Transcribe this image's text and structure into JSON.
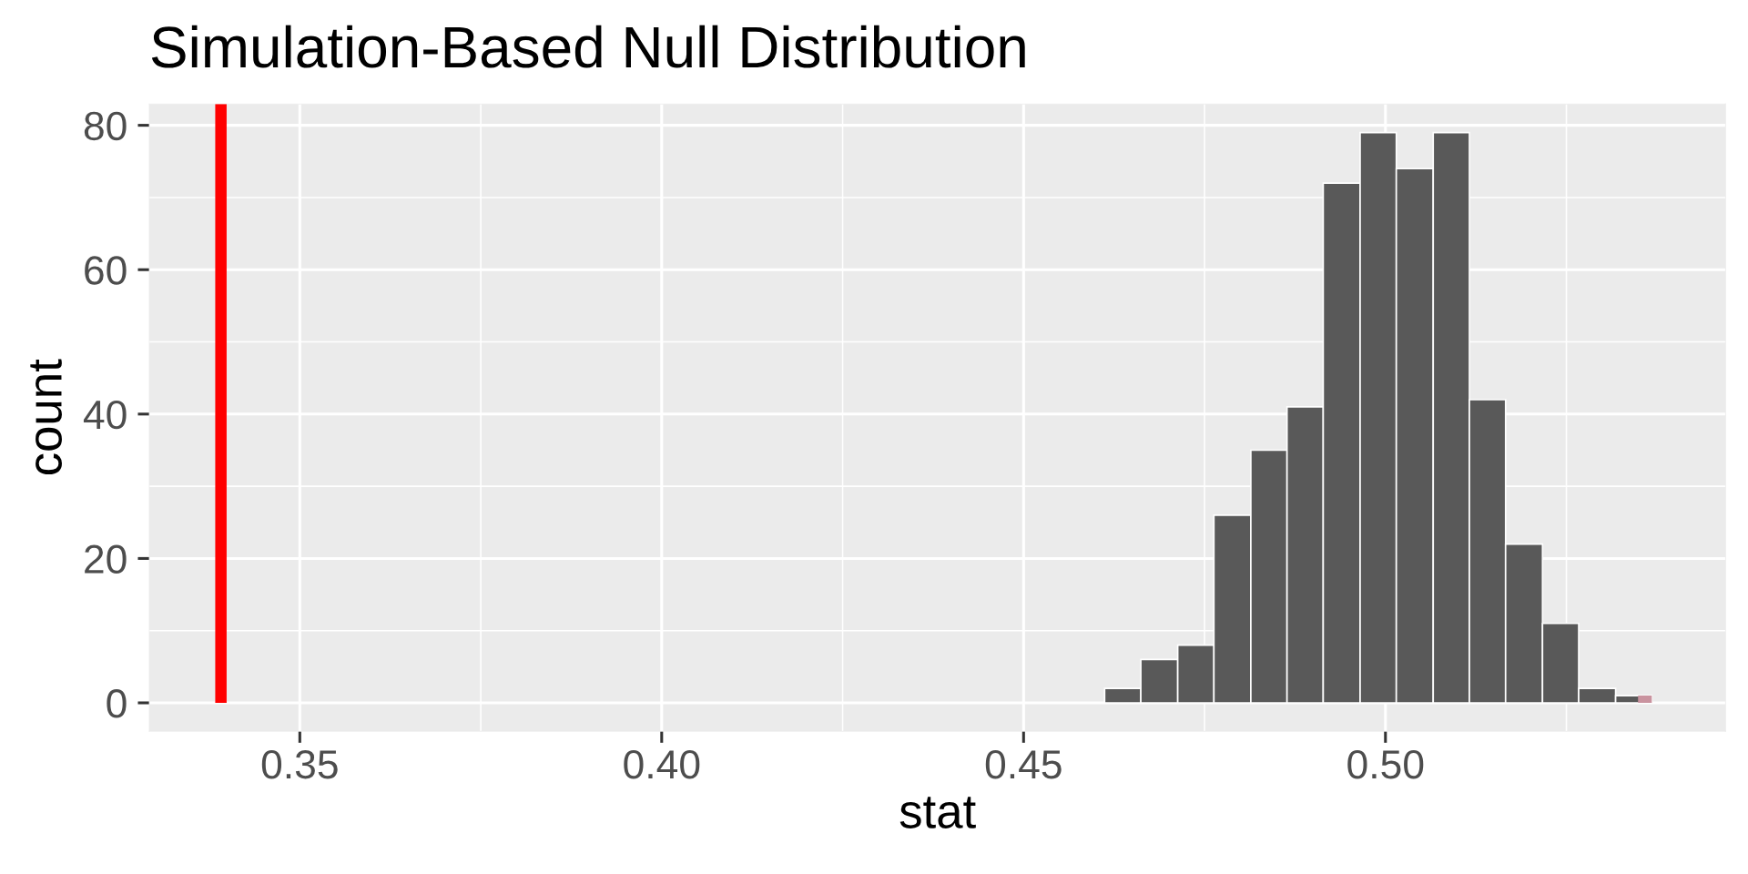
{
  "chart_data": {
    "type": "histogram",
    "title": "Simulation-Based Null Distribution",
    "xlabel": "stat",
    "ylabel": "count",
    "bins": [
      0.4612,
      0.4662,
      0.4713,
      0.4763,
      0.4814,
      0.4864,
      0.4914,
      0.4965,
      0.5015,
      0.5066,
      0.5116,
      0.5166,
      0.5217,
      0.5267,
      0.5318,
      0.5368
    ],
    "series": [
      {
        "color": "#595959",
        "values": [
          2,
          6,
          8,
          26,
          35,
          41,
          72,
          79,
          74,
          79,
          42,
          22,
          11,
          2,
          1
        ]
      },
      {
        "color": "#c9939f",
        "bins": [
          0.5349,
          0.5368
        ],
        "values": [
          1
        ]
      }
    ],
    "xlim": [
      0.3292,
      0.547
    ],
    "ylim": [
      -3.95,
      82.95
    ],
    "xticks": [
      0.35,
      {
        "value": 0.375,
        "label": null
      },
      {
        "value": 0.4,
        "label": "0.40"
      },
      {
        "value": 0.425,
        "label": null
      },
      0.45,
      {
        "value": 0.475,
        "label": null
      },
      {
        "value": 0.5,
        "label": "0.50"
      },
      {
        "value": 0.525,
        "label": null
      }
    ],
    "yticks": [
      0,
      {
        "value": 10,
        "label": null
      },
      20,
      {
        "value": 30,
        "label": null
      },
      40,
      {
        "value": 50,
        "label": null
      },
      60,
      {
        "value": 70,
        "label": null
      },
      80
    ],
    "grid": true,
    "ref_lines": [
      {
        "axis": "x",
        "value": 0.3391,
        "color": "#ff0000"
      }
    ]
  }
}
